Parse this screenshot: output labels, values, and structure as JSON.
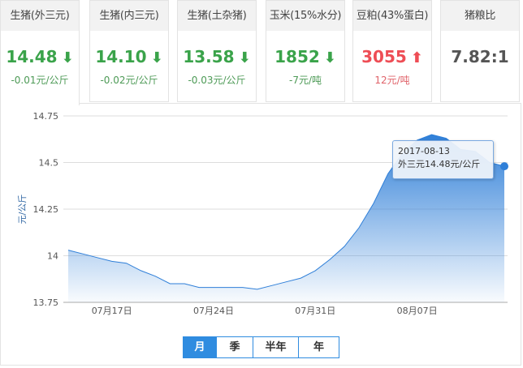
{
  "cards": [
    {
      "title": "生猪(外三元)",
      "value": "14.48",
      "dir": "down",
      "change": "-0.01元/公斤"
    },
    {
      "title": "生猪(内三元)",
      "value": "14.10",
      "dir": "down",
      "change": "-0.02元/公斤"
    },
    {
      "title": "生猪(土杂猪)",
      "value": "13.58",
      "dir": "down",
      "change": "-0.03元/公斤"
    },
    {
      "title": "玉米(15%水分)",
      "value": "1852",
      "dir": "down",
      "change": "-7元/吨"
    },
    {
      "title": "豆粕(43%蛋白)",
      "value": "3055",
      "dir": "up",
      "change": "12元/吨"
    },
    {
      "title": "猪粮比",
      "value": "7.82:1"
    }
  ],
  "arrows": {
    "down": "⬇",
    "up": "⬆"
  },
  "colors": {
    "down": "#3aa34a",
    "up": "#ee4d55",
    "series": "#2f7fd8"
  },
  "chart_data": {
    "type": "area",
    "ylabel": "元/公斤",
    "ylim": [
      13.75,
      14.75
    ],
    "yticks": [
      "14.75",
      "14.5",
      "14.25",
      "14",
      "13.75"
    ],
    "xticks": [
      {
        "date": "2017-07-17",
        "label": "07月17日"
      },
      {
        "date": "2017-07-24",
        "label": "07月24日"
      },
      {
        "date": "2017-07-31",
        "label": "07月31日"
      },
      {
        "date": "2017-08-07",
        "label": "08月07日"
      }
    ],
    "x_start": "2017-07-14",
    "x_end": "2017-08-13",
    "values": [
      14.03,
      14.01,
      13.99,
      13.97,
      13.96,
      13.92,
      13.89,
      13.85,
      13.85,
      13.83,
      13.83,
      13.83,
      13.83,
      13.82,
      13.84,
      13.86,
      13.88,
      13.92,
      13.98,
      14.05,
      14.15,
      14.28,
      14.44,
      14.55,
      14.62,
      14.65,
      14.63,
      14.57,
      14.56,
      14.5,
      14.48
    ],
    "grid": true,
    "tooltip": {
      "date": "2017-08-13",
      "text": "外三元14.48元/公斤"
    }
  },
  "range_buttons": [
    {
      "label": "月",
      "active": true
    },
    {
      "label": "季"
    },
    {
      "label": "半年"
    },
    {
      "label": "年"
    }
  ]
}
